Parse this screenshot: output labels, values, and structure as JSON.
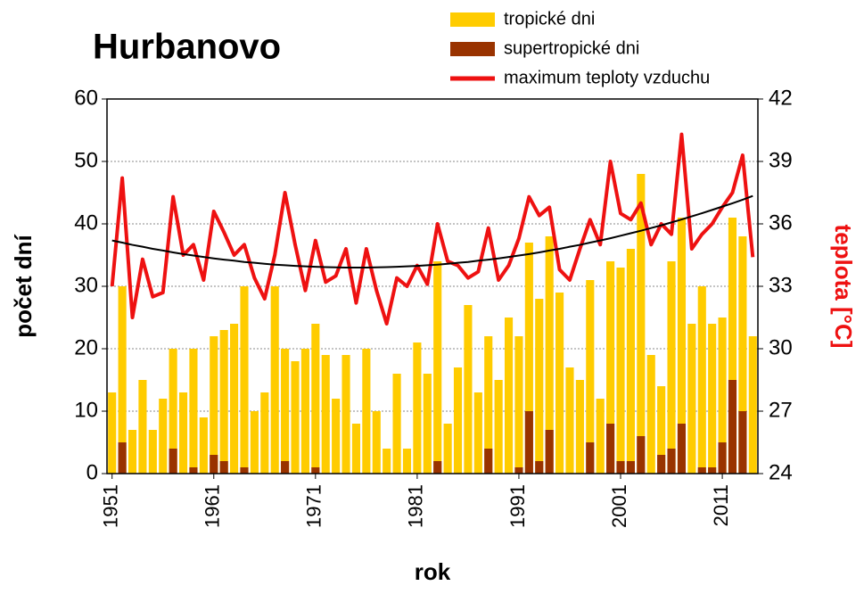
{
  "chart_data": {
    "type": "bar",
    "title": "Hurbanovo",
    "x_label": "rok",
    "y_label": "počet dní",
    "y2_label": "teplota [°C]",
    "categories": [
      "1951",
      null,
      null,
      null,
      null,
      null,
      null,
      null,
      null,
      null,
      "1961",
      null,
      null,
      null,
      null,
      null,
      null,
      null,
      null,
      null,
      "1971",
      null,
      null,
      null,
      null,
      null,
      null,
      null,
      null,
      null,
      "1981",
      null,
      null,
      null,
      null,
      null,
      null,
      null,
      null,
      null,
      "1991",
      null,
      null,
      null,
      null,
      null,
      null,
      null,
      null,
      null,
      "2001",
      null,
      null,
      null,
      null,
      null,
      null,
      null,
      null,
      null,
      "2011",
      null,
      null,
      null
    ],
    "series": [
      {
        "name": "tropické dni",
        "type": "bar",
        "color": "#ffcc00",
        "values": [
          13,
          30,
          7,
          15,
          7,
          12,
          20,
          13,
          20,
          9,
          22,
          23,
          24,
          30,
          10,
          13,
          30,
          20,
          18,
          20,
          24,
          19,
          12,
          19,
          8,
          20,
          10,
          4,
          16,
          4,
          21,
          16,
          34,
          8,
          17,
          27,
          13,
          22,
          15,
          25,
          22,
          37,
          28,
          38,
          29,
          17,
          15,
          31,
          12,
          34,
          33,
          36,
          48,
          19,
          14,
          34,
          41,
          24,
          30,
          24,
          25,
          41,
          38,
          22
        ]
      },
      {
        "name": "supertropické dni",
        "type": "bar",
        "color": "#993300",
        "values": [
          0,
          5,
          0,
          0,
          0,
          0,
          4,
          0,
          1,
          0,
          3,
          2,
          0,
          1,
          0,
          0,
          0,
          2,
          0,
          0,
          1,
          0,
          0,
          0,
          0,
          0,
          0,
          0,
          0,
          0,
          0,
          0,
          2,
          0,
          0,
          0,
          0,
          4,
          0,
          0,
          1,
          10,
          2,
          7,
          0,
          0,
          0,
          5,
          0,
          8,
          2,
          2,
          6,
          0,
          3,
          4,
          8,
          0,
          1,
          1,
          5,
          15,
          10,
          0
        ]
      },
      {
        "name": "maximum teploty vzduchu",
        "type": "line",
        "axis": "y2",
        "color": "#ee1111",
        "values": [
          33.0,
          38.2,
          31.5,
          34.3,
          32.5,
          32.7,
          37.3,
          34.5,
          35.0,
          33.3,
          36.6,
          35.6,
          34.5,
          35.0,
          33.4,
          32.4,
          34.5,
          37.5,
          35.0,
          32.8,
          35.2,
          33.2,
          33.5,
          34.8,
          32.2,
          34.8,
          32.8,
          31.2,
          33.4,
          33.0,
          34.0,
          33.1,
          36.0,
          34.2,
          34.0,
          33.4,
          33.7,
          35.8,
          33.3,
          34.0,
          35.3,
          37.3,
          36.4,
          36.8,
          33.8,
          33.3,
          34.8,
          36.2,
          35.0,
          39.0,
          36.5,
          36.2,
          37.0,
          35.0,
          36.0,
          35.5,
          40.3,
          34.8,
          35.5,
          36.0,
          36.8,
          37.5,
          39.3,
          34.4
        ]
      },
      {
        "type": "line",
        "axis": "y2",
        "color": "#000000",
        "values": [
          35.2,
          35.1,
          34.99,
          34.9,
          34.8,
          34.72,
          34.63,
          34.55,
          34.48,
          34.41,
          34.34,
          34.28,
          34.23,
          34.17,
          34.13,
          34.08,
          34.04,
          34.01,
          33.98,
          33.96,
          33.94,
          33.92,
          33.91,
          33.9,
          33.9,
          33.9,
          33.91,
          33.92,
          33.94,
          33.96,
          33.98,
          34.01,
          34.04,
          34.08,
          34.13,
          34.17,
          34.23,
          34.28,
          34.34,
          34.41,
          34.48,
          34.55,
          34.63,
          34.72,
          34.8,
          34.9,
          34.99,
          35.1,
          35.2,
          35.31,
          35.43,
          35.55,
          35.67,
          35.8,
          35.93,
          36.07,
          36.21,
          36.36,
          36.51,
          36.67,
          36.83,
          36.99,
          37.16,
          37.34
        ]
      }
    ],
    "ylim": [
      0,
      60
    ],
    "yticks": [
      0,
      10,
      20,
      30,
      40,
      50,
      60
    ],
    "y2lim": [
      24,
      42
    ],
    "y2ticks": [
      24,
      27,
      30,
      33,
      36,
      39,
      42
    ],
    "grid": true,
    "legend": "top-right"
  }
}
